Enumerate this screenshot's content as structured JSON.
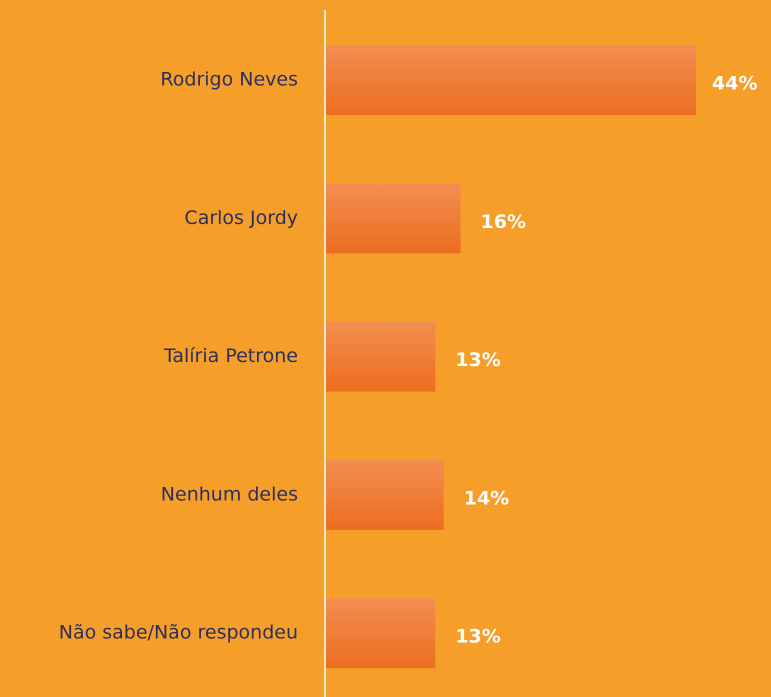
{
  "chart_data": {
    "type": "bar",
    "orientation": "horizontal",
    "categories": [
      "Rodrigo Neves",
      "Carlos Jordy",
      "Talíria Petrone",
      "Nenhum deles",
      "Não sabe/Não respondeu"
    ],
    "values": [
      44,
      16,
      13,
      14,
      13
    ],
    "value_labels": [
      "44%",
      "16%",
      "13%",
      "14%",
      "13%"
    ],
    "color": "#EF7A2E"
  }
}
